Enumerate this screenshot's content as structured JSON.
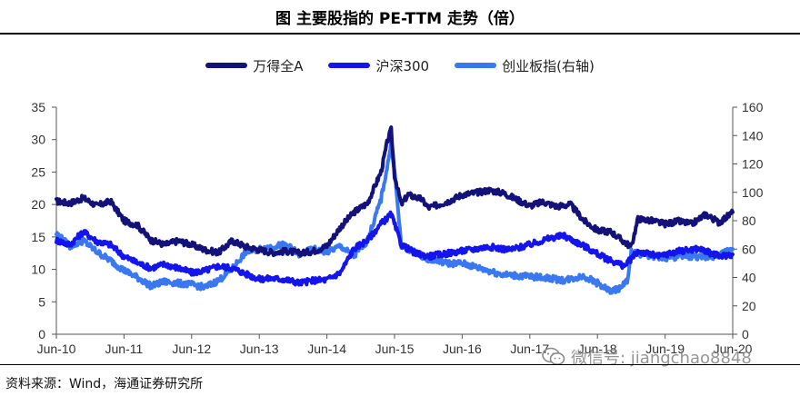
{
  "header": {
    "title": "图  主要股指的 PE-TTM 走势（倍）"
  },
  "source": "资料来源：Wind，海通证券研究所",
  "watermark": {
    "text": "微信号: jiangchao8848",
    "icon": "wechat-icon"
  },
  "colors": {
    "wande": "#13127a",
    "hs300": "#1414ee",
    "cyb": "#3a78f2"
  },
  "chart_data": {
    "type": "line",
    "title": "主要股指的 PE-TTM 走势（倍）",
    "x": [
      "Jun-10",
      "Jun-11",
      "Jun-12",
      "Jun-13",
      "Jun-14",
      "Jun-15",
      "Jun-16",
      "Jun-17",
      "Jun-18",
      "Jun-19",
      "Jun-20"
    ],
    "x_axis_labels": [
      "Jun-10",
      "Jun-11",
      "Jun-12",
      "Jun-13",
      "Jun-14",
      "Jun-15",
      "Jun-16",
      "Jun-17",
      "Jun-18",
      "Jun-19",
      "Jun-20"
    ],
    "y_left": {
      "min": 0,
      "max": 35,
      "ticks": [
        "0",
        "5",
        "10",
        "15",
        "20",
        "25",
        "30",
        "35"
      ]
    },
    "y_right": {
      "min": 0,
      "max": 160,
      "ticks": [
        "0",
        "20",
        "40",
        "60",
        "80",
        "100",
        "120",
        "140",
        "160"
      ]
    },
    "series": [
      {
        "name": "万得全A",
        "axis": "left",
        "x": [
          2010.5,
          2010.7,
          2010.9,
          2011.1,
          2011.3,
          2011.5,
          2011.7,
          2011.9,
          2012.1,
          2012.3,
          2012.5,
          2012.7,
          2012.9,
          2013.1,
          2013.3,
          2013.5,
          2013.7,
          2013.9,
          2014.1,
          2014.3,
          2014.5,
          2014.7,
          2014.9,
          2015.1,
          2015.3,
          2015.4,
          2015.45,
          2015.5,
          2015.6,
          2015.7,
          2015.9,
          2016.0,
          2016.1,
          2016.3,
          2016.5,
          2016.7,
          2016.9,
          2017.1,
          2017.3,
          2017.5,
          2017.7,
          2017.9,
          2018.1,
          2018.3,
          2018.5,
          2018.7,
          2018.9,
          2019.0,
          2019.1,
          2019.3,
          2019.5,
          2019.7,
          2019.9,
          2020.1,
          2020.3,
          2020.5
        ],
        "y": [
          20.5,
          20.2,
          21,
          19.8,
          20.5,
          17.5,
          16.8,
          14.5,
          13.8,
          14.4,
          13.8,
          13.0,
          12.6,
          14.4,
          13.5,
          13.0,
          12.6,
          12.8,
          12.5,
          12.8,
          13.6,
          16.5,
          18.8,
          20.2,
          25.0,
          30.0,
          31.5,
          24.5,
          20.0,
          21.5,
          20.8,
          19.5,
          19.8,
          20.5,
          21.5,
          21.8,
          22.2,
          21.8,
          20.8,
          19.8,
          20.4,
          19.7,
          20.0,
          17.5,
          16.0,
          15.8,
          14.2,
          13.5,
          17.8,
          17.5,
          17.0,
          17.4,
          17.0,
          18.5,
          17.2,
          18.8
        ]
      },
      {
        "name": "沪深300",
        "axis": "left",
        "x": [
          2010.5,
          2010.7,
          2010.9,
          2011.1,
          2011.3,
          2011.5,
          2011.7,
          2011.9,
          2012.1,
          2012.3,
          2012.5,
          2012.7,
          2012.9,
          2013.1,
          2013.3,
          2013.5,
          2013.7,
          2013.9,
          2014.1,
          2014.3,
          2014.5,
          2014.7,
          2014.9,
          2015.1,
          2015.3,
          2015.45,
          2015.6,
          2015.8,
          2016.0,
          2016.3,
          2016.6,
          2016.9,
          2017.2,
          2017.5,
          2017.8,
          2018.0,
          2018.3,
          2018.6,
          2018.9,
          2019.1,
          2019.4,
          2019.7,
          2020.0,
          2020.3,
          2020.5
        ],
        "y": [
          14.5,
          13.8,
          15.8,
          14.3,
          13.8,
          12.0,
          11.0,
          10.2,
          10.8,
          10.2,
          9.5,
          9.8,
          10.5,
          10.2,
          9.3,
          8.5,
          8.6,
          8.4,
          7.9,
          8.3,
          8.4,
          9.5,
          13.2,
          14.5,
          17.0,
          18.5,
          13.8,
          12.5,
          12.0,
          12.5,
          13.0,
          13.5,
          13.0,
          13.8,
          14.8,
          15.2,
          13.6,
          11.8,
          10.5,
          12.8,
          12.0,
          12.8,
          13.2,
          12.0,
          12.3
        ]
      },
      {
        "name": "创业板指(右轴)",
        "axis": "right",
        "x": [
          2010.5,
          2010.7,
          2010.9,
          2011.1,
          2011.3,
          2011.5,
          2011.7,
          2011.9,
          2012.1,
          2012.3,
          2012.5,
          2012.7,
          2012.9,
          2013.1,
          2013.3,
          2013.5,
          2013.7,
          2013.9,
          2014.1,
          2014.3,
          2014.5,
          2014.7,
          2014.9,
          2015.1,
          2015.3,
          2015.4,
          2015.45,
          2015.5,
          2015.6,
          2015.8,
          2016.0,
          2016.3,
          2016.5,
          2016.8,
          2017.1,
          2017.4,
          2017.7,
          2018.0,
          2018.3,
          2018.5,
          2018.7,
          2018.85,
          2018.95,
          2019.0,
          2019.2,
          2019.5,
          2019.8,
          2020.1,
          2020.3,
          2020.5
        ],
        "y": [
          71,
          62,
          66,
          58,
          52,
          45,
          40,
          34,
          37,
          36,
          35,
          33,
          38,
          46,
          58,
          60,
          62,
          63,
          56,
          60,
          58,
          62,
          55,
          66,
          95,
          120,
          135,
          115,
          62,
          58,
          53,
          50,
          50,
          46,
          42,
          41,
          40,
          38,
          41,
          36,
          30,
          33,
          38,
          58,
          56,
          54,
          55,
          54,
          56,
          60
        ]
      }
    ]
  }
}
